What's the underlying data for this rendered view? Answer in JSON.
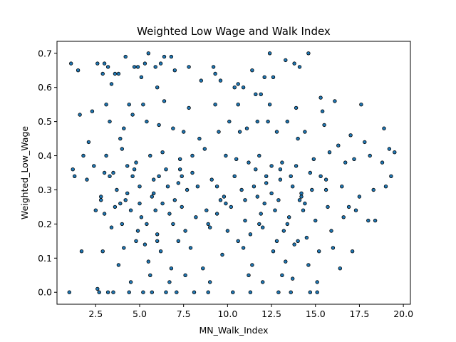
{
  "chart_data": {
    "type": "scatter",
    "title": "Weighted Low Wage and Walk Index",
    "xlabel": "MN_Walk_Index",
    "ylabel": "Weighted_Low_Wage",
    "xlim": [
      0.3,
      20.4
    ],
    "ylim": [
      -0.035,
      0.735
    ],
    "xticks": [
      2.5,
      5.0,
      7.5,
      10.0,
      12.5,
      15.0,
      17.5,
      20.0
    ],
    "xtick_labels": [
      "2.5",
      "5.0",
      "7.5",
      "10.0",
      "12.5",
      "15.0",
      "17.5",
      "20.0"
    ],
    "yticks": [
      0.0,
      0.1,
      0.2,
      0.3,
      0.4,
      0.5,
      0.6,
      0.7
    ],
    "ytick_labels": [
      "0.0",
      "0.1",
      "0.2",
      "0.3",
      "0.4",
      "0.5",
      "0.6",
      "0.7"
    ],
    "grid": false,
    "legend": "none",
    "marker_color": "#1f77b4",
    "marker_edge_color": "#000000",
    "series": [
      {
        "x": [
          1.0,
          1.1,
          1.5,
          1.6,
          2.6,
          2.9,
          3.0,
          3.2,
          3.4,
          3.6,
          3.8,
          4.2,
          4.7,
          4.9,
          5.1,
          5.3,
          5.5,
          5.9,
          6.0,
          6.2,
          6.4,
          6.8,
          7.0,
          7.8,
          8.5,
          9.2,
          9.3,
          9.6,
          10.4,
          10.6,
          10.9,
          11.4,
          11.6,
          11.9,
          12.1,
          12.4,
          12.6,
          13.3,
          13.8,
          14.1,
          14.6,
          15.3,
          16.1,
          2.7,
          2.6,
          3.2,
          3.5,
          4.4,
          5.2,
          5.7,
          6.5,
          7.1,
          8.1,
          8.9,
          10.3,
          11.3,
          12.9,
          13.6,
          14.7,
          15.1,
          2.3,
          3.3,
          3.9,
          4.1,
          4.6,
          5.4,
          6.1,
          6.9,
          7.5,
          8.4,
          9.5,
          10.1,
          10.7,
          11.1,
          11.7,
          12.3,
          12.8,
          13.4,
          14.0,
          14.4,
          15.5,
          16.3,
          17.0,
          17.8,
          18.9,
          1.2,
          1.8,
          2.1,
          3.1,
          4.0,
          4.8,
          5.6,
          6.3,
          7.3,
          8.0,
          8.7,
          9.9,
          10.5,
          11.2,
          11.8,
          12.5,
          13.1,
          13.9,
          14.9,
          15.8,
          16.7,
          17.2,
          18.1,
          18.8,
          19.2,
          19.5,
          2.4,
          2.8,
          3.7,
          4.3,
          5.0,
          5.8,
          6.6,
          7.2,
          7.7,
          8.3,
          9.1,
          9.8,
          10.8,
          11.5,
          12.2,
          13.0,
          13.7,
          14.2,
          14.8,
          15.6,
          16.5,
          17.5,
          18.3,
          19.0,
          2.5,
          3.0,
          3.6,
          4.5,
          5.1,
          5.9,
          6.7,
          7.4,
          8.2,
          8.8,
          9.4,
          10.2,
          11.0,
          11.9,
          12.7,
          13.5,
          14.3,
          15.0,
          15.7,
          16.6,
          17.3,
          18.0,
          3.4,
          4.9,
          6.0,
          7.6,
          9.0,
          10.0,
          11.3,
          12.0,
          13.2,
          14.5,
          15.9,
          2.9,
          4.1,
          5.3,
          6.2,
          7.9,
          9.7,
          10.9,
          12.6,
          13.8,
          15.2,
          16.0,
          17.1,
          3.8,
          5.5,
          6.8,
          8.6,
          11.4,
          13.3,
          14.6,
          16.4,
          1.7,
          3.1,
          4.4,
          5.2,
          6.4,
          7.8,
          9.3,
          10.6,
          12.4,
          13.9,
          15.4,
          17.6,
          3.5,
          4.7,
          6.5,
          8.0,
          11.6,
          13.0,
          14.7,
          2.8,
          4.2,
          5.7,
          7.0,
          9.6,
          11.7,
          12.9,
          14.1,
          3.3,
          4.6,
          6.1,
          7.4,
          10.4,
          12.2,
          13.6,
          15.3,
          4.0,
          5.4,
          6.9,
          8.9,
          11.8,
          13.4,
          3.9,
          5.0,
          6.3,
          9.9,
          12.1,
          14.4,
          4.8,
          6.0,
          7.2,
          10.6,
          12.8,
          14.0,
          5.6,
          7.6,
          11.2,
          13.1,
          4.5,
          6.7,
          9.0,
          12.0,
          13.7,
          15.1,
          1.3,
          2.0,
          3.0,
          4.3,
          5.8,
          7.3,
          9.4,
          11.0,
          12.5,
          14.2,
          15.6,
          16.9,
          18.4,
          19.3
        ],
        "y": [
          0.0,
          0.67,
          0.65,
          0.52,
          0.67,
          0.64,
          0.67,
          0.66,
          0.61,
          0.64,
          0.64,
          0.69,
          0.66,
          0.66,
          0.63,
          0.67,
          0.7,
          0.66,
          0.6,
          0.67,
          0.69,
          0.69,
          0.65,
          0.66,
          0.62,
          0.66,
          0.64,
          0.62,
          0.6,
          0.61,
          0.6,
          0.65,
          0.58,
          0.58,
          0.63,
          0.7,
          0.63,
          0.68,
          0.67,
          0.66,
          0.7,
          0.57,
          0.56,
          0.0,
          0.01,
          0.0,
          0.0,
          0.0,
          0.0,
          0.0,
          0.0,
          0.0,
          0.0,
          0.0,
          0.0,
          0.0,
          0.0,
          0.0,
          0.0,
          0.0,
          0.53,
          0.5,
          0.45,
          0.48,
          0.52,
          0.5,
          0.49,
          0.48,
          0.47,
          0.45,
          0.47,
          0.5,
          0.47,
          0.48,
          0.5,
          0.5,
          0.47,
          0.5,
          0.45,
          0.47,
          0.49,
          0.43,
          0.46,
          0.44,
          0.48,
          0.36,
          0.4,
          0.44,
          0.4,
          0.42,
          0.38,
          0.4,
          0.41,
          0.39,
          0.4,
          0.42,
          0.4,
          0.39,
          0.38,
          0.4,
          0.37,
          0.38,
          0.37,
          0.39,
          0.41,
          0.38,
          0.39,
          0.4,
          0.38,
          0.42,
          0.41,
          0.37,
          0.27,
          0.3,
          0.29,
          0.31,
          0.33,
          0.31,
          0.32,
          0.3,
          0.31,
          0.33,
          0.28,
          0.3,
          0.31,
          0.32,
          0.33,
          0.31,
          0.29,
          0.3,
          0.33,
          0.31,
          0.28,
          0.3,
          0.31,
          0.24,
          0.23,
          0.25,
          0.24,
          0.22,
          0.24,
          0.23,
          0.25,
          0.22,
          0.24,
          0.23,
          0.25,
          0.21,
          0.23,
          0.24,
          0.22,
          0.24,
          0.21,
          0.25,
          0.22,
          0.24,
          0.21,
          0.19,
          0.18,
          0.17,
          0.18,
          0.19,
          0.18,
          0.17,
          0.19,
          0.18,
          0.16,
          0.18,
          0.12,
          0.13,
          0.14,
          0.12,
          0.13,
          0.11,
          0.13,
          0.12,
          0.14,
          0.12,
          0.13,
          0.12,
          0.08,
          0.09,
          0.07,
          0.07,
          0.08,
          0.09,
          0.08,
          0.07,
          0.12,
          0.55,
          0.55,
          0.55,
          0.56,
          0.54,
          0.55,
          0.55,
          0.55,
          0.54,
          0.53,
          0.55,
          0.35,
          0.36,
          0.36,
          0.35,
          0.36,
          0.36,
          0.35,
          0.28,
          0.27,
          0.28,
          0.27,
          0.27,
          0.28,
          0.27,
          0.27,
          0.34,
          0.34,
          0.34,
          0.34,
          0.34,
          0.34,
          0.34,
          0.34,
          0.2,
          0.2,
          0.2,
          0.2,
          0.2,
          0.2,
          0.26,
          0.26,
          0.26,
          0.26,
          0.26,
          0.26,
          0.15,
          0.15,
          0.15,
          0.15,
          0.15,
          0.15,
          0.05,
          0.05,
          0.05,
          0.05,
          0.03,
          0.03,
          0.03,
          0.03,
          0.04,
          0.03,
          0.34,
          0.33,
          0.35,
          0.37,
          0.29,
          0.36,
          0.31,
          0.27,
          0.29,
          0.28,
          0.3,
          0.25,
          0.21,
          0.34
        ]
      }
    ]
  }
}
